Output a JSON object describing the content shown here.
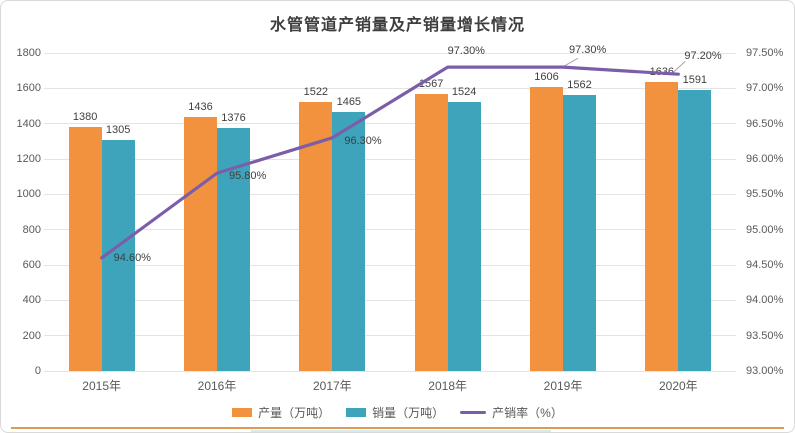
{
  "title": "水管管道产销量及产销量增长情况",
  "chart_data": {
    "type": "bar",
    "subtype": "combo-bar-line",
    "title": "水管管道产销量及产销量增长情况",
    "categories": [
      "2015年",
      "2016年",
      "2017年",
      "2018年",
      "2019年",
      "2020年"
    ],
    "series": [
      {
        "name": "产量（万吨）",
        "type": "bar",
        "axis": "left",
        "color": "#f2913e",
        "values": [
          1380,
          1436,
          1522,
          1567,
          1606,
          1636
        ],
        "labels": [
          "1380",
          "1436",
          "1522",
          "1567",
          "1606",
          "1636"
        ]
      },
      {
        "name": "销量（万吨）",
        "type": "bar",
        "axis": "left",
        "color": "#3da4bc",
        "values": [
          1305,
          1376,
          1465,
          1524,
          1562,
          1591
        ],
        "labels": [
          "1305",
          "1376",
          "1465",
          "1524",
          "1562",
          "1591"
        ]
      },
      {
        "name": "产销率（%）",
        "type": "line",
        "axis": "right",
        "color": "#7b5ea8",
        "values": [
          94.6,
          95.8,
          96.3,
          97.3,
          97.3,
          97.2
        ],
        "labels": [
          "94.60%",
          "95.80%",
          "96.30%",
          "97.30%",
          "97.30%",
          "97.20%"
        ]
      }
    ],
    "left_axis": {
      "min": 0,
      "max": 1800,
      "step": 200,
      "ticks": [
        "0",
        "200",
        "400",
        "600",
        "800",
        "1000",
        "1200",
        "1400",
        "1600",
        "1800"
      ]
    },
    "right_axis": {
      "min": 93,
      "max": 97.5,
      "step": 0.5,
      "ticks": [
        "93.00%",
        "93.50%",
        "94.00%",
        "94.50%",
        "95.00%",
        "95.50%",
        "96.00%",
        "96.50%",
        "97.00%",
        "97.50%"
      ]
    },
    "legend_position": "bottom",
    "grid": true
  },
  "colors": {
    "production": "#f2913e",
    "sales": "#3da4bc",
    "rate_line": "#7b5ea8",
    "gridline": "#e4e4e4",
    "axis_text": "#595959",
    "title_text": "#3e3e3e",
    "bottom_rule": "#e09a51",
    "leader_line": "#a6a6a6"
  }
}
